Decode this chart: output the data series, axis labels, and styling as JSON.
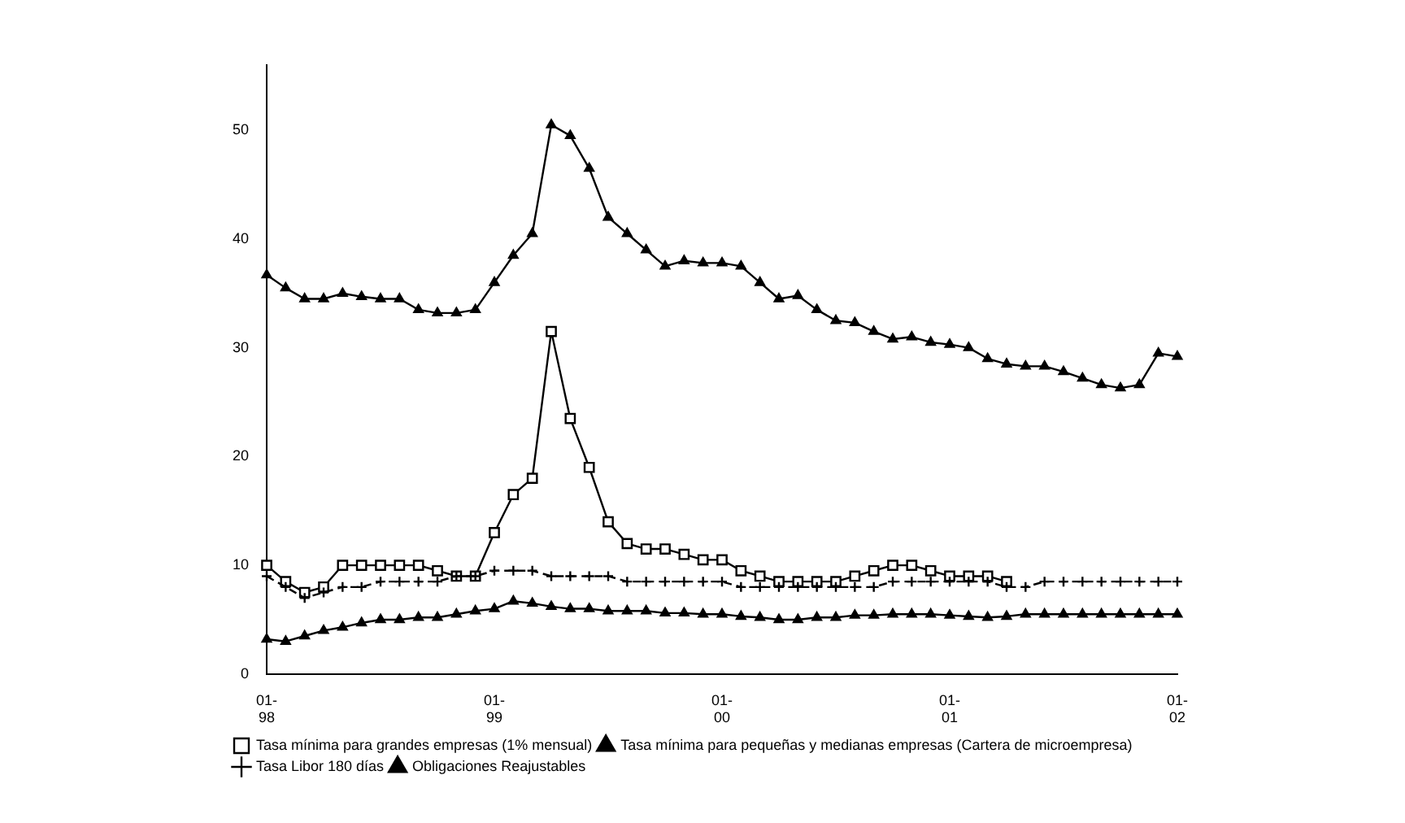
{
  "chart_data": {
    "type": "line",
    "categories": [
      "01-98",
      null,
      null,
      null,
      null,
      null,
      null,
      null,
      null,
      null,
      null,
      null,
      "01-99",
      null,
      null,
      null,
      null,
      null,
      null,
      null,
      null,
      null,
      null,
      null,
      "01-00",
      null,
      null,
      null,
      null,
      null,
      null,
      null,
      null,
      null,
      null,
      null,
      "01-01",
      null,
      null,
      null,
      null,
      null,
      null,
      null,
      null,
      null,
      null,
      null,
      "01-02"
    ],
    "series": [
      {
        "name": "Tasa mínima para grandes empresas (1% mensual)",
        "color": "#000000",
        "marker": "square",
        "values": [
          10,
          8.5,
          7.5,
          8,
          10,
          10,
          10,
          10,
          10,
          9.5,
          9,
          9,
          13,
          16.5,
          18,
          31.5,
          23.5,
          19,
          14,
          12,
          11.5,
          11.5,
          11,
          10.5,
          10.5,
          9.5,
          9,
          8.5,
          8.5,
          8.5,
          8.5,
          9,
          9.5,
          10,
          10,
          9.5,
          9,
          9,
          9,
          8.5,
          null,
          null,
          null,
          null,
          null,
          null,
          null,
          null,
          null
        ]
      },
      {
        "name": "Tasa mínima para pequeñas y medianas empresas (Cartera de microempresa)",
        "color": "#000000",
        "marker": "triangle",
        "values": [
          36.7,
          35.5,
          34.5,
          34.5,
          35,
          34.7,
          34.5,
          34.5,
          33.5,
          33.2,
          33.2,
          33.5,
          36,
          38.5,
          40.5,
          50.5,
          49.5,
          46.5,
          42,
          40.5,
          39,
          37.5,
          38,
          37.8,
          37.8,
          37.5,
          36,
          34.5,
          34.8,
          33.5,
          32.5,
          32.3,
          31.5,
          30.8,
          31,
          30.5,
          30.3,
          30,
          29,
          28.5,
          28.3,
          28.3,
          27.8,
          27.2,
          26.6,
          26.3,
          26.6,
          29.5,
          29.2
        ]
      },
      {
        "name": "Tasa Libor 180 días",
        "color": "#000000",
        "marker": "cross",
        "line_style": "dashed",
        "values": [
          9,
          8,
          7,
          7.5,
          8,
          8,
          8.5,
          8.5,
          8.5,
          8.5,
          9,
          9,
          9.5,
          9.5,
          9.5,
          9,
          9,
          9,
          9,
          8.5,
          8.5,
          8.5,
          8.5,
          8.5,
          8.5,
          8,
          8,
          8,
          8,
          8,
          8,
          8,
          8,
          8.5,
          8.5,
          8.5,
          8.5,
          8.5,
          8.5,
          8,
          8,
          8.5,
          8.5,
          8.5,
          8.5,
          8.5,
          8.5,
          8.5,
          8.5
        ]
      },
      {
        "name": "Obligaciones Reajustables",
        "color": "#000000",
        "marker": "triangle",
        "values": [
          3.2,
          3,
          3.5,
          4,
          4.3,
          4.7,
          5,
          5,
          5.2,
          5.2,
          5.5,
          5.8,
          6,
          6.7,
          6.5,
          6.2,
          6,
          6,
          5.8,
          5.8,
          5.8,
          5.6,
          5.6,
          5.5,
          5.5,
          5.3,
          5.2,
          5,
          5,
          5.2,
          5.2,
          5.4,
          5.4,
          5.5,
          5.5,
          5.5,
          5.4,
          5.3,
          5.2,
          5.3,
          5.5,
          5.5,
          5.5,
          5.5,
          5.5,
          5.5,
          5.5,
          5.5,
          5.5
        ]
      }
    ],
    "ylim": [
      0,
      56
    ],
    "yticks": [
      0,
      10,
      20,
      30,
      40,
      50
    ],
    "grid": false,
    "legend": "bottom"
  }
}
